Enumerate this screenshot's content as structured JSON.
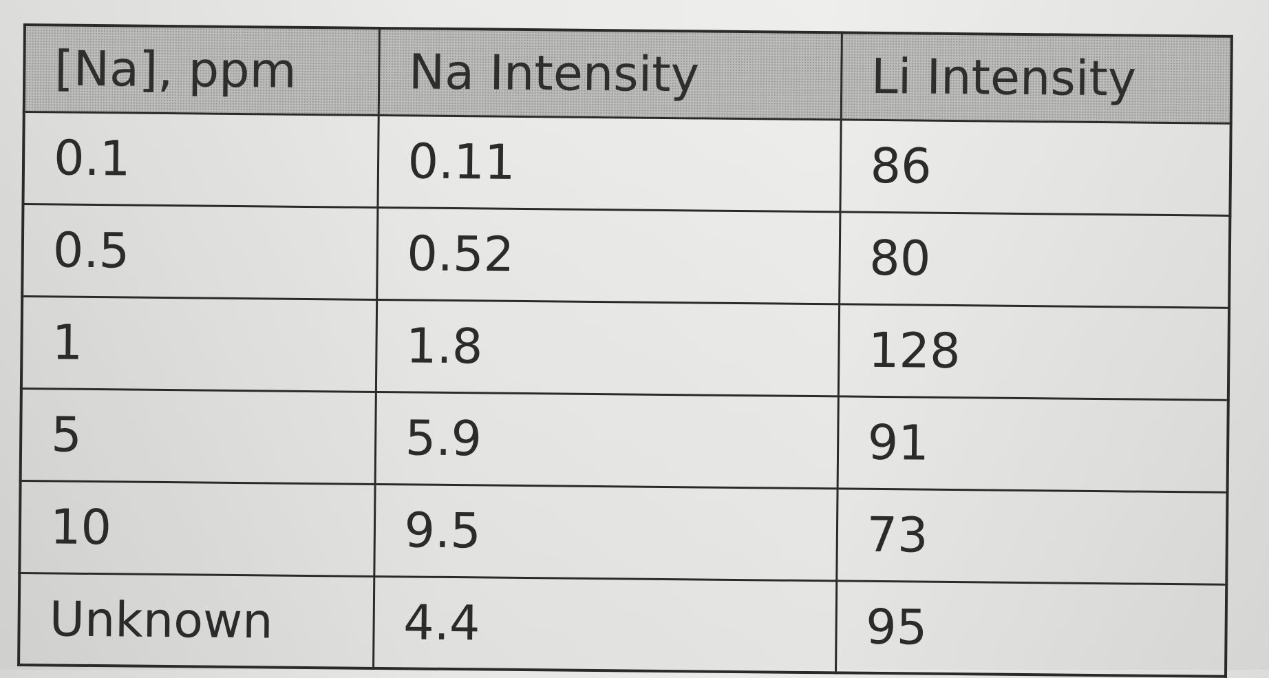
{
  "table": {
    "headers": [
      "[Na], ppm",
      "Na Intensity",
      "Li Intensity"
    ],
    "rows": [
      [
        "0.1",
        "0.11",
        "86"
      ],
      [
        "0.5",
        "0.52",
        "80"
      ],
      [
        "1",
        "1.8",
        "128"
      ],
      [
        "5",
        "5.9",
        "91"
      ],
      [
        "10",
        "9.5",
        "73"
      ],
      [
        "Unknown",
        "4.4",
        "95"
      ]
    ]
  },
  "colors": {
    "paper": "#e7e7e5",
    "grid_lines": "#2a2a2a",
    "header_fill": "#bdbdbb",
    "text": "#2b2b2b"
  }
}
